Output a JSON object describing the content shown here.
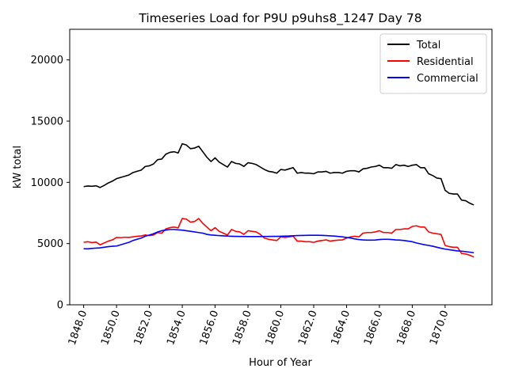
{
  "chart_data": {
    "type": "line",
    "title": "Timeseries Load for P9U p9uhs8_1247  Day 78",
    "xlabel": "Hour of Year",
    "ylabel": "kW total",
    "xlim": [
      1847.15,
      1872.85
    ],
    "ylim": [
      0,
      22500
    ],
    "x_ticks": [
      1848,
      1850,
      1852,
      1854,
      1856,
      1858,
      1860,
      1862,
      1864,
      1866,
      1868,
      1870
    ],
    "x_tick_labels": [
      "1848.0",
      "1850.0",
      "1852.0",
      "1854.0",
      "1856.0",
      "1858.0",
      "1860.0",
      "1862.0",
      "1864.0",
      "1866.0",
      "1868.0",
      "1870.0"
    ],
    "y_ticks": [
      0,
      5000,
      10000,
      15000,
      20000
    ],
    "y_tick_labels": [
      "0",
      "5000",
      "10000",
      "15000",
      "20000"
    ],
    "legend_position": "top-right",
    "x": [
      1848.0,
      1848.25,
      1848.5,
      1848.75,
      1849.0,
      1849.25,
      1849.5,
      1849.75,
      1850.0,
      1850.25,
      1850.5,
      1850.75,
      1851.0,
      1851.25,
      1851.5,
      1851.75,
      1852.0,
      1852.25,
      1852.5,
      1852.75,
      1853.0,
      1853.25,
      1853.5,
      1853.75,
      1854.0,
      1854.25,
      1854.5,
      1854.75,
      1855.0,
      1855.25,
      1855.5,
      1855.75,
      1856.0,
      1856.25,
      1856.5,
      1856.75,
      1857.0,
      1857.25,
      1857.5,
      1857.75,
      1858.0,
      1858.25,
      1858.5,
      1858.75,
      1859.0,
      1859.25,
      1859.5,
      1859.75,
      1860.0,
      1860.25,
      1860.5,
      1860.75,
      1861.0,
      1861.25,
      1861.5,
      1861.75,
      1862.0,
      1862.25,
      1862.5,
      1862.75,
      1863.0,
      1863.25,
      1863.5,
      1863.75,
      1864.0,
      1864.25,
      1864.5,
      1864.75,
      1865.0,
      1865.25,
      1865.5,
      1865.75,
      1866.0,
      1866.25,
      1866.5,
      1866.75,
      1867.0,
      1867.25,
      1867.5,
      1867.75,
      1868.0,
      1868.25,
      1868.5,
      1868.75,
      1869.0,
      1869.25,
      1869.5,
      1869.75,
      1870.0,
      1870.25,
      1870.5,
      1870.75,
      1871.0,
      1871.25,
      1871.5,
      1871.75
    ],
    "series": [
      {
        "name": "Total",
        "color": "#000000",
        "values": [
          9650,
          9700,
          9680,
          9720,
          9580,
          9750,
          9950,
          10100,
          10300,
          10400,
          10500,
          10600,
          10800,
          10900,
          11000,
          11300,
          11350,
          11500,
          11850,
          11900,
          12300,
          12450,
          12500,
          12400,
          13150,
          13050,
          12750,
          12800,
          12950,
          12500,
          12050,
          11700,
          12000,
          11650,
          11450,
          11250,
          11700,
          11550,
          11500,
          11300,
          11600,
          11550,
          11450,
          11250,
          11050,
          10900,
          10850,
          10750,
          11050,
          11000,
          11100,
          11200,
          10750,
          10800,
          10750,
          10750,
          10700,
          10850,
          10850,
          10900,
          10750,
          10800,
          10800,
          10750,
          10900,
          10950,
          10950,
          10850,
          11100,
          11150,
          11250,
          11300,
          11400,
          11200,
          11200,
          11150,
          11450,
          11350,
          11400,
          11300,
          11400,
          11450,
          11200,
          11200,
          10700,
          10550,
          10350,
          10300,
          9350,
          9100,
          9050,
          9050,
          8550,
          8500,
          8300,
          8150
        ]
      },
      {
        "name": "Residential",
        "color": "#ff0000",
        "values": [
          5100,
          5150,
          5080,
          5120,
          4900,
          5050,
          5200,
          5300,
          5500,
          5480,
          5520,
          5500,
          5550,
          5600,
          5620,
          5700,
          5650,
          5700,
          5900,
          5850,
          6200,
          6300,
          6350,
          6280,
          7050,
          7000,
          6750,
          6800,
          7050,
          6650,
          6350,
          6050,
          6300,
          6000,
          5850,
          5700,
          6150,
          6000,
          5950,
          5750,
          6050,
          6000,
          5950,
          5750,
          5450,
          5350,
          5300,
          5250,
          5550,
          5500,
          5550,
          5600,
          5200,
          5200,
          5150,
          5150,
          5100,
          5200,
          5250,
          5300,
          5200,
          5250,
          5280,
          5300,
          5450,
          5550,
          5600,
          5550,
          5850,
          5900,
          5900,
          5950,
          6050,
          5900,
          5900,
          5850,
          6150,
          6150,
          6200,
          6200,
          6400,
          6450,
          6350,
          6350,
          5950,
          5850,
          5800,
          5750,
          4850,
          4750,
          4700,
          4700,
          4200,
          4150,
          4050,
          3900
        ]
      },
      {
        "name": "Commercial",
        "color": "#0000ff",
        "values": [
          4580,
          4570,
          4600,
          4630,
          4650,
          4700,
          4750,
          4780,
          4800,
          4900,
          5000,
          5100,
          5250,
          5350,
          5450,
          5600,
          5700,
          5800,
          5950,
          6050,
          6100,
          6150,
          6150,
          6120,
          6100,
          6050,
          6000,
          5950,
          5900,
          5850,
          5750,
          5700,
          5680,
          5650,
          5630,
          5610,
          5600,
          5590,
          5580,
          5580,
          5570,
          5570,
          5570,
          5570,
          5580,
          5580,
          5590,
          5590,
          5600,
          5610,
          5620,
          5640,
          5650,
          5660,
          5670,
          5680,
          5680,
          5680,
          5670,
          5650,
          5630,
          5610,
          5580,
          5550,
          5500,
          5450,
          5380,
          5330,
          5300,
          5280,
          5280,
          5290,
          5330,
          5350,
          5350,
          5330,
          5300,
          5280,
          5250,
          5200,
          5150,
          5050,
          4980,
          4900,
          4850,
          4780,
          4700,
          4620,
          4550,
          4500,
          4450,
          4400,
          4380,
          4340,
          4300,
          4250
        ]
      }
    ]
  }
}
